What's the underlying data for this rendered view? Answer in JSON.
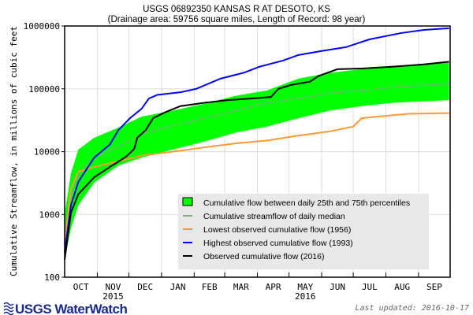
{
  "header": {
    "title": "USGS 06892350 KANSAS R AT DESOTO, KS",
    "subtitle": "(Drainage area: 59756 square miles, Length of Record: 98 year)"
  },
  "footer": {
    "logo_text": "USGS WaterWatch",
    "last_updated": "Last updated: 2016-10-17"
  },
  "chart_data": {
    "type": "line",
    "title": "USGS 06892350 KANSAS R AT DESOTO, KS",
    "ylabel": "Cumulative Streamflow, in millions of cubic feet",
    "yscale": "log",
    "ylim": [
      100,
      1000000
    ],
    "ytick_labels": [
      "100",
      "1000",
      "10000",
      "100000",
      "1000000"
    ],
    "xlim": [
      "2015-10-01",
      "2016-09-30"
    ],
    "xtick_labels": [
      "OCT",
      "NOV",
      "DEC",
      "JAN",
      "FEB",
      "MAR",
      "APR",
      "MAY",
      "JUN",
      "JUL",
      "AUG",
      "SEP"
    ],
    "year_labels": [
      {
        "month": "NOV",
        "text": "2015"
      },
      {
        "month": "MAY",
        "text": "2016"
      }
    ],
    "grid": true,
    "legend_placement": "bottom-right",
    "colors": {
      "band": "#00ff00",
      "median": "#88aa88",
      "lowest": "#ff9933",
      "highest": "#0000ff",
      "observed": "#000000"
    },
    "band": {
      "name": "Cumulative flow between daily 25th and 75th percentiles",
      "x": [
        "2015-10-01",
        "2015-10-07",
        "2015-10-14",
        "2015-10-29",
        "2015-11-21",
        "2015-12-13",
        "2016-01-12",
        "2016-02-11",
        "2016-03-11",
        "2016-04-10",
        "2016-05-10",
        "2016-06-09",
        "2016-07-09",
        "2016-08-08",
        "2016-09-30"
      ],
      "upper": [
        1000,
        4500,
        10800,
        16600,
        24000,
        36000,
        45000,
        58000,
        77000,
        94000,
        145000,
        180000,
        205000,
        225000,
        260000
      ],
      "lower": [
        190,
        600,
        1400,
        3200,
        6000,
        8000,
        10800,
        14500,
        20000,
        25000,
        34000,
        45000,
        53000,
        60000,
        66000
      ]
    },
    "series": [
      {
        "name": "Cumulative streamflow of daily median",
        "key": "median",
        "x": [
          "2015-10-01",
          "2015-10-14",
          "2015-10-29",
          "2015-11-21",
          "2015-12-13",
          "2016-01-12",
          "2016-02-11",
          "2016-03-11",
          "2016-04-10",
          "2016-05-10",
          "2016-06-09",
          "2016-07-09",
          "2016-08-08",
          "2016-09-30"
        ],
        "y": [
          600,
          4500,
          8000,
          12000,
          19000,
          26000,
          34000,
          45000,
          60000,
          70000,
          86000,
          94000,
          105000,
          122000
        ]
      },
      {
        "name": "Lowest observed cumulative flow (1956)",
        "key": "lowest",
        "x": [
          "2015-10-01",
          "2015-10-07",
          "2015-10-14",
          "2015-10-29",
          "2015-11-21",
          "2015-12-13",
          "2016-01-12",
          "2016-02-11",
          "2016-03-11",
          "2016-04-10",
          "2016-05-10",
          "2016-06-09",
          "2016-07-01",
          "2016-07-09",
          "2016-07-24",
          "2016-08-22",
          "2016-09-30"
        ],
        "y": [
          330,
          2500,
          4800,
          5700,
          7000,
          8600,
          10000,
          11700,
          13500,
          15000,
          18000,
          21000,
          25000,
          34000,
          36000,
          40000,
          41000
        ]
      },
      {
        "name": "Highest observed cumulative flow (1993)",
        "key": "highest",
        "x": [
          "2015-10-01",
          "2015-10-07",
          "2015-10-14",
          "2015-10-29",
          "2015-11-13",
          "2015-11-21",
          "2015-12-02",
          "2015-12-13",
          "2015-12-20",
          "2015-12-28",
          "2016-01-19",
          "2016-02-03",
          "2016-02-26",
          "2016-03-19",
          "2016-04-03",
          "2016-04-25",
          "2016-05-10",
          "2016-06-01",
          "2016-06-24",
          "2016-07-16",
          "2016-08-15",
          "2016-09-06",
          "2016-09-30"
        ],
        "y": [
          250,
          1400,
          3300,
          8000,
          13000,
          22000,
          34000,
          48000,
          70000,
          80000,
          88000,
          100000,
          145000,
          180000,
          225000,
          280000,
          345000,
          400000,
          460000,
          610000,
          770000,
          865000,
          920000
        ]
      },
      {
        "name": "Observed cumulative flow (2016)",
        "key": "observed",
        "x": [
          "2015-10-01",
          "2015-10-07",
          "2015-10-14",
          "2015-10-29",
          "2015-11-13",
          "2015-11-28",
          "2015-12-06",
          "2015-12-09",
          "2015-12-17",
          "2015-12-24",
          "2016-01-04",
          "2016-01-19",
          "2016-02-11",
          "2016-03-04",
          "2016-03-26",
          "2016-04-14",
          "2016-04-21",
          "2016-05-03",
          "2016-05-21",
          "2016-05-29",
          "2016-06-16",
          "2016-07-09",
          "2016-08-08",
          "2016-09-06",
          "2016-09-30"
        ],
        "y": [
          190,
          1070,
          2100,
          3900,
          5700,
          8200,
          11000,
          16600,
          22000,
          34000,
          42000,
          53000,
          60000,
          66000,
          70000,
          74000,
          100000,
          115000,
          130000,
          160000,
          205000,
          210000,
          225000,
          245000,
          270000
        ]
      }
    ]
  }
}
